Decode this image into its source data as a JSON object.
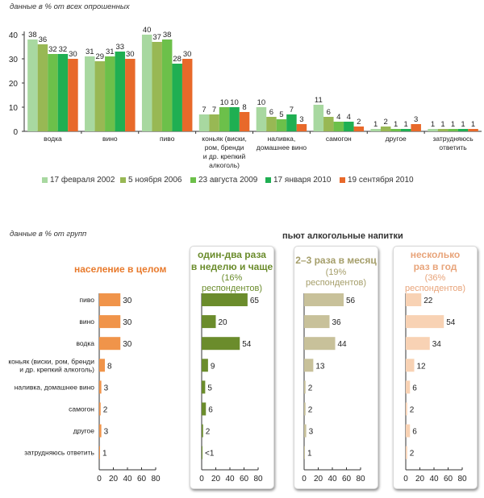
{
  "top_note": "данные в % от всех опрошенных",
  "bottom_note": "данные в % от групп",
  "legend": [
    {
      "label": "17 февраля 2002",
      "color": "#a8d8a0"
    },
    {
      "label": "5 ноября 2006",
      "color": "#98b854"
    },
    {
      "label": "23 августа 2009",
      "color": "#6cc04a"
    },
    {
      "label": "17 января 2010",
      "color": "#1faf52"
    },
    {
      "label": "19 сентября 2010",
      "color": "#e8692a"
    }
  ],
  "drinkers_title": "пьют алкогольные напитки",
  "groups": {
    "population": {
      "title": "население в целом",
      "color": "#f0944a",
      "title_color": "#e87a2c"
    },
    "weekly": {
      "title_line1": "один-два раза",
      "title_line2": "в неделю и чаще",
      "subtitle": "(16% респондентов)",
      "color": "#6b8c2c",
      "title_color": "#6b8c2c"
    },
    "monthly": {
      "title": "2–3 раза в месяц",
      "subtitle": "(19% респондентов)",
      "color": "#c8c19a",
      "title_color": "#a59e6a"
    },
    "yearly": {
      "title_line1": "несколько",
      "title_line2": "раз в год",
      "subtitle": "(36% респондентов)",
      "color": "#f8d2b4",
      "title_color": "#e8a47a"
    }
  },
  "chart_data": [
    {
      "type": "bar",
      "title": "",
      "xlabel": "",
      "ylabel": "",
      "ylim": [
        0,
        40
      ],
      "yticks": [
        0,
        10,
        20,
        30,
        40
      ],
      "grid": false,
      "legend_position": "bottom",
      "categories": [
        [
          "водка"
        ],
        [
          "вино"
        ],
        [
          "пиво"
        ],
        [
          "коньяк (виски,",
          "ром, бренди",
          "и др. крепкий",
          "алкоголь)"
        ],
        [
          "наливка,",
          "домашнее вино"
        ],
        [
          "самогон"
        ],
        [
          "другое"
        ],
        [
          "затрудняюсь",
          "ответить"
        ]
      ],
      "series": [
        {
          "name": "17 февраля 2002",
          "values": [
            38,
            31,
            40,
            7,
            10,
            11,
            1,
            1
          ]
        },
        {
          "name": "5 ноября 2006",
          "values": [
            36,
            29,
            37,
            7,
            6,
            6,
            2,
            1
          ]
        },
        {
          "name": "23 августа 2009",
          "values": [
            32,
            31,
            38,
            10,
            5,
            4,
            1,
            1
          ]
        },
        {
          "name": "17 января 2010",
          "values": [
            32,
            33,
            28,
            10,
            7,
            4,
            1,
            1
          ]
        },
        {
          "name": "19 сентября 2010",
          "values": [
            30,
            30,
            30,
            8,
            3,
            2,
            3,
            1
          ]
        }
      ]
    },
    {
      "type": "bar",
      "orientation": "horizontal",
      "title": "население в целом",
      "xlim": [
        0,
        80
      ],
      "xticks": [
        0,
        20,
        40,
        60,
        80
      ],
      "categories": [
        [
          "пиво"
        ],
        [
          "вино"
        ],
        [
          "водка"
        ],
        [
          "коньяк (виски, ром, бренди",
          "и др. крепкий алкоголь)"
        ],
        [
          "наливка, домашнее вино"
        ],
        [
          "самогон"
        ],
        [
          "другое"
        ],
        [
          "затрудняюсь ответить"
        ]
      ],
      "values": [
        30,
        30,
        30,
        8,
        3,
        2,
        3,
        1
      ],
      "labels": [
        "30",
        "30",
        "30",
        "8",
        "3",
        "2",
        "3",
        "1"
      ]
    },
    {
      "type": "bar",
      "orientation": "horizontal",
      "title": "один-два раза в неделю и чаще (16% респондентов)",
      "xlim": [
        0,
        80
      ],
      "xticks": [
        0,
        20,
        40,
        60,
        80
      ],
      "values": [
        65,
        20,
        54,
        9,
        5,
        6,
        2,
        0.5
      ],
      "labels": [
        "65",
        "20",
        "54",
        "9",
        "5",
        "6",
        "2",
        "<1"
      ]
    },
    {
      "type": "bar",
      "orientation": "horizontal",
      "title": "2–3 раза в месяц (19% респондентов)",
      "xlim": [
        0,
        80
      ],
      "xticks": [
        0,
        20,
        40,
        60,
        80
      ],
      "values": [
        56,
        36,
        44,
        13,
        2,
        2,
        3,
        1
      ],
      "labels": [
        "56",
        "36",
        "44",
        "13",
        "2",
        "2",
        "3",
        "1"
      ]
    },
    {
      "type": "bar",
      "orientation": "horizontal",
      "title": "несколько раз в год (36% респондентов)",
      "xlim": [
        0,
        80
      ],
      "xticks": [
        0,
        20,
        40,
        60,
        80
      ],
      "values": [
        22,
        54,
        34,
        12,
        6,
        2,
        6,
        2
      ],
      "labels": [
        "22",
        "54",
        "34",
        "12",
        "6",
        "2",
        "6",
        "2"
      ]
    }
  ]
}
